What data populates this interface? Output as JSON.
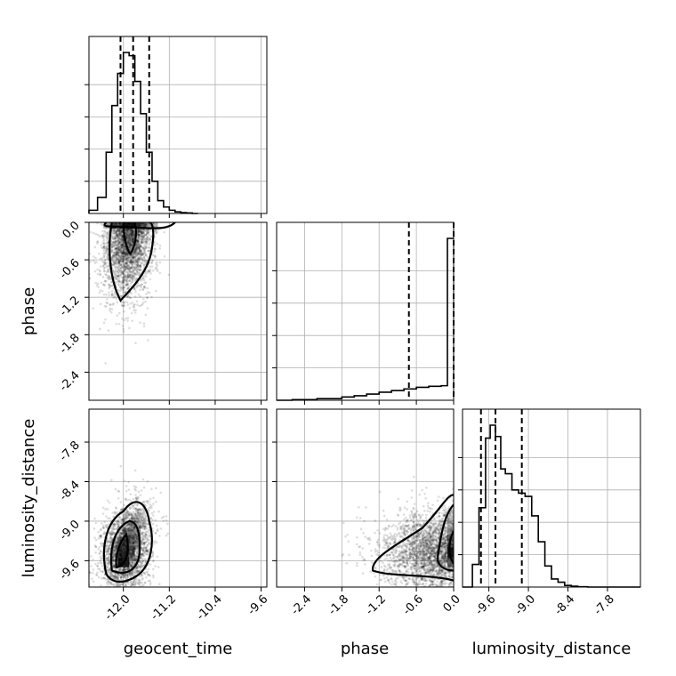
{
  "chart_data": {
    "type": "corner",
    "parameters": [
      "geocent_time",
      "phase",
      "luminosity_distance"
    ],
    "axis_labels": [
      "geocent_time",
      "phase",
      "luminosity_distance"
    ],
    "ranges": {
      "geocent_time": [
        -12.6,
        -9.5
      ],
      "phase": [
        -2.85,
        0.0
      ],
      "luminosity_distance": [
        -10.0,
        -7.3
      ]
    },
    "ticks": {
      "geocent_time": [
        "-12.0",
        "-11.2",
        "-10.4",
        "-9.6"
      ],
      "phase": [
        "-2.4",
        "-1.8",
        "-1.2",
        "-0.6",
        "0.0"
      ],
      "luminosity_distance": [
        "-9.6",
        "-9.0",
        "-8.4",
        "-7.8"
      ]
    },
    "quantiles": {
      "geocent_time": [
        -12.05,
        -11.83,
        -11.55
      ],
      "phase": [
        -0.72,
        0.0
      ],
      "luminosity_distance": [
        -9.72,
        -9.5,
        -9.1
      ]
    },
    "histograms": {
      "geocent_time": {
        "bin_edges": [
          -12.6,
          -12.45,
          -12.3,
          -12.2,
          -12.1,
          -12.0,
          -11.9,
          -11.8,
          -11.7,
          -11.6,
          -11.5,
          -11.4,
          -11.3,
          -11.2,
          -11.1,
          -11.0,
          -10.9,
          -10.8,
          -10.7
        ],
        "counts": [
          2,
          10,
          38,
          67,
          87,
          100,
          98,
          82,
          62,
          38,
          20,
          8,
          4,
          2,
          1,
          0.5,
          0.3,
          0
        ]
      },
      "phase": {
        "bin_edges": [
          -2.85,
          -2.6,
          -2.2,
          -1.8,
          -1.6,
          -1.4,
          -1.2,
          -1.0,
          -0.8,
          -0.6,
          -0.4,
          -0.2,
          -0.1,
          0.0
        ],
        "counts": [
          0,
          0.4,
          1,
          2,
          2.8,
          3.8,
          5,
          6,
          7,
          8,
          8.6,
          9,
          100
        ]
      },
      "luminosity_distance": {
        "bin_edges": [
          -10.0,
          -9.85,
          -9.75,
          -9.65,
          -9.58,
          -9.5,
          -9.42,
          -9.35,
          -9.25,
          -9.15,
          -9.05,
          -8.95,
          -8.85,
          -8.75,
          -8.65,
          -8.55,
          -8.45,
          -8.35,
          -8.25,
          -8.1,
          -7.3
        ],
        "counts": [
          0,
          14,
          49,
          92,
          100,
          93,
          73,
          70,
          60,
          58,
          56,
          44,
          28,
          13,
          5,
          3,
          1,
          0.5,
          0.2,
          0
        ]
      }
    },
    "grid": true
  }
}
